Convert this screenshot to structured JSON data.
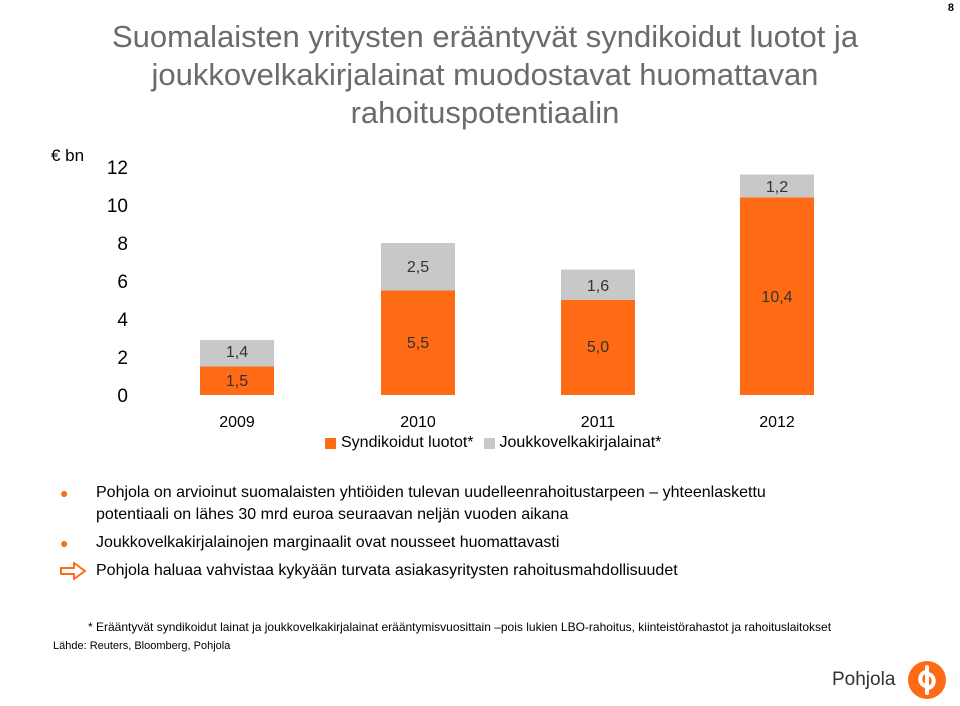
{
  "page_number": "8",
  "title": {
    "line1": "Suomalaisten yritysten erääntyvät syndikoidut luotot ja",
    "line2": "joukkovelkakirjalainat muodostavat huomattavan",
    "line3": "rahoituspotentiaalin"
  },
  "unit_label": "€ bn",
  "colors": {
    "syndicated": "#ff6a14",
    "bonds": "#c8c8c8",
    "title": "#6b6b6b",
    "accent": "#ff6a14"
  },
  "chart_data": {
    "type": "bar",
    "stacked": true,
    "categories": [
      "2009",
      "2010",
      "2011",
      "2012"
    ],
    "series": [
      {
        "name": "Syndikoidut luotot*",
        "values": [
          1.5,
          5.5,
          5.0,
          10.4
        ],
        "labels": [
          "1,5",
          "5,5",
          "5,0",
          "10,4"
        ]
      },
      {
        "name": "Joukkovelkakirjalainat*",
        "values": [
          1.4,
          2.5,
          1.6,
          1.2
        ],
        "labels": [
          "1,4",
          "2,5",
          "1,6",
          "1,2"
        ]
      }
    ],
    "y_ticks": [
      "0",
      "2",
      "4",
      "6",
      "8",
      "10",
      "12"
    ],
    "ylim": [
      0,
      12
    ],
    "grid": false,
    "legend_position": "bottom"
  },
  "bullets": [
    {
      "line1": "Pohjola on arvioinut suomalaisten yhtiöiden tulevan uudelleenrahoitustarpeen – yhteenlaskettu",
      "line2": "potentiaali on lähes 30 mrd euroa seuraavan neljän vuoden aikana"
    },
    {
      "line1": "Joukkovelkakirjalainojen marginaalit ovat nousseet huomattavasti"
    },
    {
      "line1": "Pohjola haluaa vahvistaa kykyään turvata asiakasyritysten rahoitusmahdollisuudet"
    }
  ],
  "bullet_icons": [
    "dot-icon",
    "dot-icon",
    "arrow-right-icon"
  ],
  "footnote": "* Erääntyvät syndikoidut lainat ja joukkovelkakirjalainat erääntymisvuosittain –pois lukien LBO-rahoitus, kiinteistörahastot ja rahoituslaitokset",
  "source": "Lähde: Reuters, Bloomberg, Pohjola",
  "logo": {
    "text": "Pohjola",
    "icon": "pohjola-logo-icon"
  }
}
